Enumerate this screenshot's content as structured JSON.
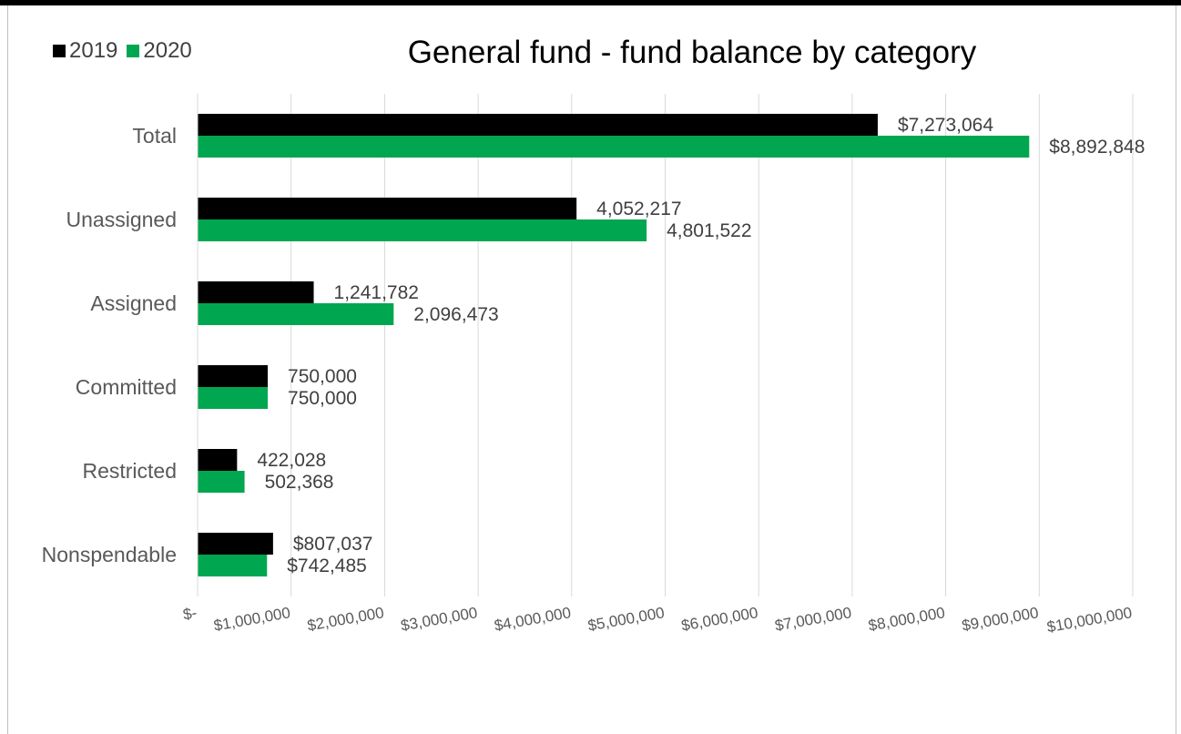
{
  "chart_data": {
    "type": "bar",
    "orientation": "horizontal",
    "title": "General fund - fund balance by category",
    "categories": [
      "Total",
      "Unassigned",
      "Assigned",
      "Committed",
      "Restricted",
      "Nonspendable"
    ],
    "series": [
      {
        "name": "2019",
        "color": "#000000",
        "values": [
          7273064,
          4052217,
          1241782,
          750000,
          422028,
          807037
        ],
        "labels": [
          "$7,273,064",
          "4,052,217",
          "1,241,782",
          "750,000",
          "422,028",
          "$807,037"
        ]
      },
      {
        "name": "2020",
        "color": "#00a650",
        "values": [
          8892848,
          4801522,
          2096473,
          750000,
          502368,
          742485
        ],
        "labels": [
          "$8,892,848",
          "4,801,522",
          "2,096,473",
          "750,000",
          "502,368",
          "$742,485"
        ]
      }
    ],
    "xlim": [
      0,
      10000000
    ],
    "xticks": [
      0,
      1000000,
      2000000,
      3000000,
      4000000,
      5000000,
      6000000,
      7000000,
      8000000,
      9000000,
      10000000
    ],
    "xtick_labels": [
      "$-",
      "$1,000,000",
      "$2,000,000",
      "$3,000,000",
      "$4,000,000",
      "$5,000,000",
      "$6,000,000",
      "$7,000,000",
      "$8,000,000",
      "$9,000,000",
      "$10,000,000"
    ],
    "grid": "vertical",
    "legend_position": "top-left"
  }
}
